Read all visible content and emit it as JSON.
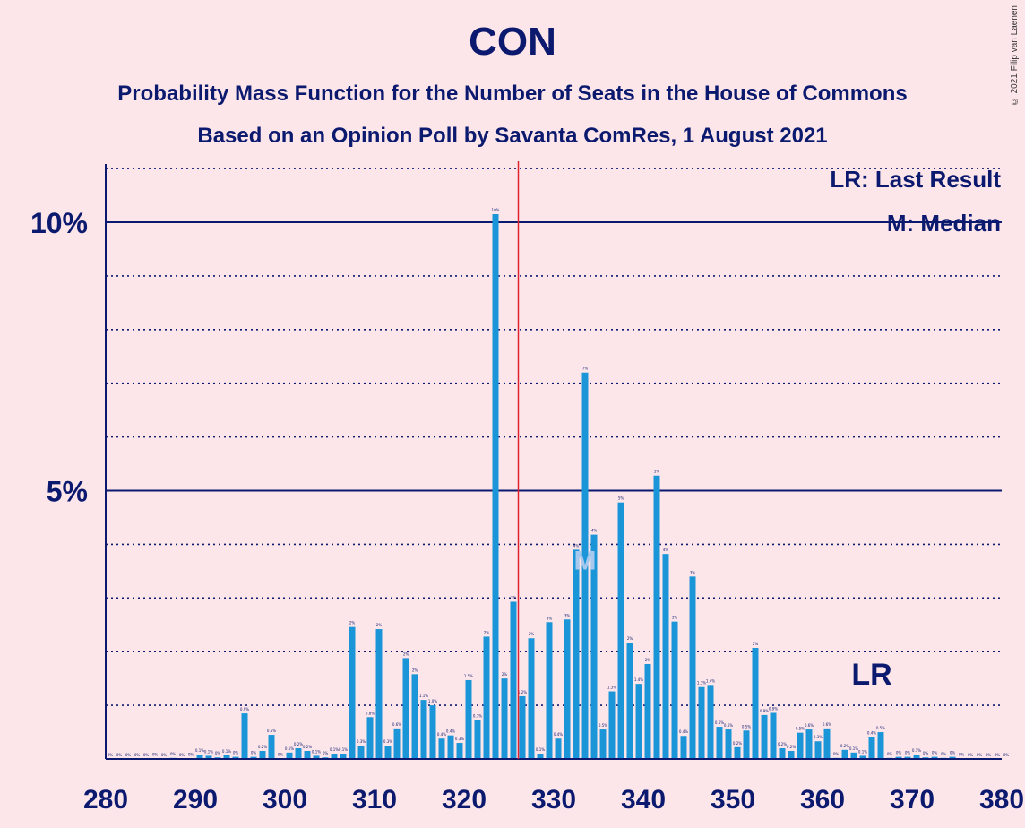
{
  "title": "CON",
  "subtitle1": "Probability Mass Function for the Number of Seats in the House of Commons",
  "subtitle2": "Based on an Opinion Poll by Savanta ComRes, 1 August 2021",
  "copyright": "© 2021 Filip van Laenen",
  "legend": {
    "lr": "LR: Last Result",
    "m": "M: Median"
  },
  "markers": {
    "lr_label": "LR",
    "lr_seat": 365,
    "median_label": "M",
    "median_seat": 333,
    "majority_seat": 326
  },
  "colors": {
    "background": "#fde6ea",
    "bar": "#1a96d8",
    "axis": "#0b1a6e",
    "majority_line": "#e0212f"
  },
  "chart_data": {
    "type": "bar",
    "xlabel": "",
    "ylabel": "",
    "x_range": [
      280,
      380
    ],
    "y_range": [
      0,
      11
    ],
    "x_ticks": [
      "280",
      "290",
      "300",
      "310",
      "320",
      "330",
      "340",
      "350",
      "360",
      "370",
      "380"
    ],
    "y_ticks": [
      {
        "value": 5,
        "label": "5%"
      },
      {
        "value": 10,
        "label": "10%"
      }
    ],
    "grid": "dotted at every 1%, solid at 5% and 10%",
    "legend_position": "top-right",
    "seats": [
      280,
      281,
      282,
      283,
      284,
      285,
      286,
      287,
      288,
      289,
      290,
      291,
      292,
      293,
      294,
      295,
      296,
      297,
      298,
      299,
      300,
      301,
      302,
      303,
      304,
      305,
      306,
      307,
      308,
      309,
      310,
      311,
      312,
      313,
      314,
      315,
      316,
      317,
      318,
      319,
      320,
      321,
      322,
      323,
      324,
      325,
      326,
      327,
      328,
      329,
      330,
      331,
      332,
      333,
      334,
      335,
      336,
      337,
      338,
      339,
      340,
      341,
      342,
      343,
      344,
      345,
      346,
      347,
      348,
      349,
      350,
      351,
      352,
      353,
      354,
      355,
      356,
      357,
      358,
      359,
      360,
      361,
      362,
      363,
      364,
      365,
      366,
      367,
      368,
      369,
      370,
      371,
      372,
      373,
      374,
      375,
      376,
      377,
      378,
      379,
      380
    ],
    "values": [
      0,
      0,
      0,
      0,
      0,
      0.01,
      0,
      0.02,
      0,
      0.01,
      0.08,
      0.06,
      0.03,
      0.07,
      0.04,
      0.85,
      0.04,
      0.15,
      0.45,
      0.01,
      0.12,
      0.2,
      0.15,
      0.06,
      0.03,
      0.1,
      0.1,
      2.46,
      0.25,
      0.78,
      2.42,
      0.25,
      0.57,
      1.88,
      1.58,
      1.1,
      1.0,
      0.38,
      0.44,
      0.3,
      1.47,
      0.73,
      2.28,
      10.15,
      1.5,
      2.93,
      1.17,
      2.25,
      0.1,
      2.55,
      0.38,
      2.6,
      3.9,
      7.2,
      4.18,
      0.55,
      1.26,
      4.78,
      2.17,
      1.4,
      1.77,
      5.28,
      3.82,
      2.56,
      0.43,
      3.4,
      1.34,
      1.38,
      0.6,
      0.55,
      0.22,
      0.53,
      2.07,
      0.82,
      0.86,
      0.2,
      0.15,
      0.49,
      0.55,
      0.33,
      0.57,
      0.02,
      0.17,
      0.12,
      0.06,
      0.41,
      0.5,
      0.02,
      0.04,
      0.04,
      0.08,
      0.03,
      0.04,
      0.02,
      0.04,
      0.01,
      0,
      0,
      0,
      0,
      0
    ],
    "labels": [
      "0%",
      "0%",
      "0%",
      "0%",
      "0%",
      "0%",
      "0%",
      "0%",
      "0%",
      "0%",
      "0.1%",
      "0.1%",
      "0%",
      "0.1%",
      "0%",
      "0.9%",
      "0%",
      "0.2%",
      "0.5%",
      "0%",
      "0.1%",
      "0.2%",
      "0.2%",
      "0.1%",
      "0%",
      "0.1%",
      "0.1%",
      "2%",
      "0.3%",
      "0.8%",
      "2%",
      "0.3%",
      "0.6%",
      "2%",
      "2%",
      "1.1%",
      "1.0%",
      "0.4%",
      "0.4%",
      "0.3%",
      "1.5%",
      "0.7%",
      "2%",
      "10%",
      "2%",
      "3%",
      "1.2%",
      "2%",
      "0.1%",
      "3%",
      "0.4%",
      "3%",
      "4%",
      "7%",
      "4%",
      "0.5%",
      "1.3%",
      "5%",
      "2%",
      "1.4%",
      "2%",
      "5%",
      "4%",
      "3%",
      "0.4%",
      "3%",
      "1.3%",
      "1.4%",
      "0.6%",
      "0.6%",
      "0.2%",
      "0.5%",
      "2%",
      "0.8%",
      "0.9%",
      "0.2%",
      "0.2%",
      "0.5%",
      "0.6%",
      "0.3%",
      "0.6%",
      "0%",
      "0.2%",
      "0.1%",
      "0.1%",
      "0.4%",
      "0.5%",
      "0%",
      "0%",
      "0%",
      "0.1%",
      "0%",
      "0%",
      "0%",
      "0%",
      "0%",
      "0%",
      "0%",
      "0%",
      "0%",
      "0%"
    ]
  }
}
